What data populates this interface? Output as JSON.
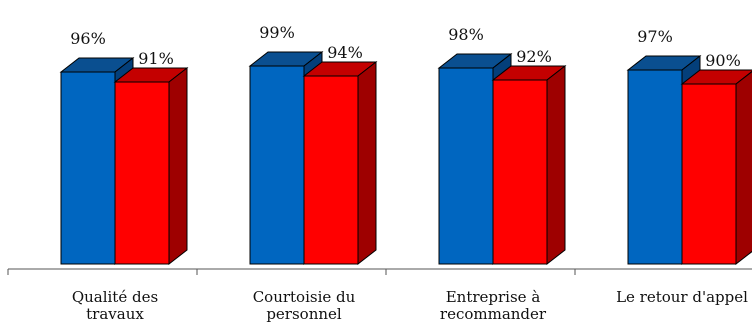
{
  "chart_data": {
    "type": "bar",
    "categories": [
      "Qualité des\ntravaux",
      "Courtoisie du\npersonnel",
      "Entreprise à\nrecommander",
      "Le retour d'appel"
    ],
    "series": [
      {
        "values": [
          96,
          99,
          98,
          97
        ],
        "labels": [
          "96%",
          "99%",
          "98%",
          "97%"
        ]
      },
      {
        "values": [
          91,
          94,
          92,
          90
        ],
        "labels": [
          "91%",
          "94%",
          "92%",
          "90%"
        ]
      }
    ],
    "ylim": [
      0,
      100
    ],
    "grid": false,
    "legend": "none",
    "colors": {
      "series1_front": "#0066C0",
      "series1_top": "#0A4F90",
      "series1_side": "#043F7A",
      "series2_front": "#FF0000",
      "series2_top": "#C40000",
      "series2_side": "#9E0000",
      "axis": "#555555"
    }
  }
}
